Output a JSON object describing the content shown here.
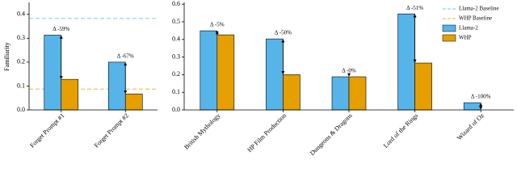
{
  "chart_data": [
    {
      "type": "bar",
      "y_label": "Familiarity",
      "categories": [
        "Forget Prompt #1",
        "Forget Prompt #2"
      ],
      "series": [
        {
          "name": "Llama-2",
          "color": "#56b4e9",
          "values": [
            0.313,
            0.2
          ]
        },
        {
          "name": "WHP",
          "color": "#e69f00",
          "values": [
            0.128,
            0.067
          ]
        }
      ],
      "baselines": [
        {
          "name": "Llama-2 Baseline",
          "color": "#8fd3f5",
          "value": 0.383
        },
        {
          "name": "WHP Baseline",
          "color": "#f5c06b",
          "value": 0.087
        }
      ],
      "annotations": [
        "Δ -59%",
        "Δ -67%"
      ],
      "ylim": [
        0,
        0.45
      ],
      "yticks": [
        {
          "value": 0,
          "label": "0.0"
        },
        0.1,
        0.2,
        0.3,
        0.4
      ]
    },
    {
      "type": "bar",
      "categories": [
        "British Mythology",
        "HP Film Production",
        "Dungeons & Dragons",
        "Lord of the Rings",
        "Wizard of Oz"
      ],
      "series": [
        {
          "name": "Llama-2",
          "color": "#56b4e9",
          "values": [
            0.449,
            0.403,
            0.188,
            0.545,
            0.041
          ]
        },
        {
          "name": "WHP",
          "color": "#e69f00",
          "values": [
            0.426,
            0.2,
            0.188,
            0.266,
            0
          ]
        }
      ],
      "annotations": [
        "Δ -5%",
        "Δ -50%",
        "Δ -0%",
        "Δ -51%",
        "Δ -100%"
      ],
      "ylim": [
        0,
        0.61
      ],
      "yticks": [
        {
          "value": 0,
          "label": "0.0"
        },
        0.1,
        0.2,
        0.3,
        0.4,
        0.5,
        0.6
      ],
      "legend": "upper right"
    }
  ]
}
